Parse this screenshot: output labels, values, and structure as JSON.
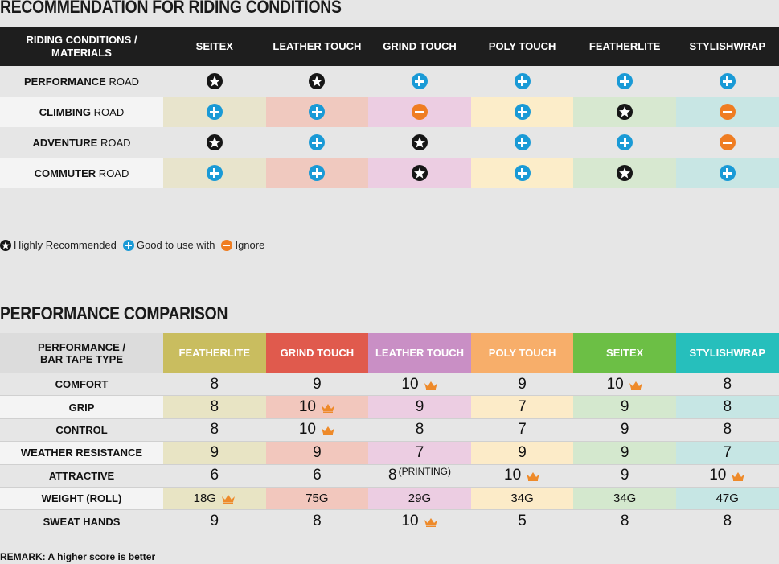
{
  "section1": {
    "title": "RECOMMENDATION FOR RIDING CONDITIONS",
    "header_label": [
      "RIDING CONDITIONS /",
      "MATERIALS"
    ],
    "columns": [
      "SEITEX",
      "LEATHER TOUCH",
      "GRIND TOUCH",
      "POLY TOUCH",
      "FEATHERLITE",
      "STYLISHWRAP"
    ],
    "column_tints": [
      "#e8e4cc",
      "#f0c9bf",
      "#eccde2",
      "#fcedc9",
      "#d7e8d0",
      "#c8e6e4"
    ],
    "rows": [
      {
        "bold": "PERFORMANCE",
        "rest": " ROAD",
        "marks": [
          "star",
          "star",
          "plus",
          "plus",
          "plus",
          "plus"
        ],
        "shaded": false
      },
      {
        "bold": "CLIMBING",
        "rest": " ROAD",
        "marks": [
          "plus",
          "plus",
          "minus",
          "plus",
          "star",
          "minus"
        ],
        "shaded": true
      },
      {
        "bold": "ADVENTURE",
        "rest": " ROAD",
        "marks": [
          "star",
          "plus",
          "star",
          "plus",
          "plus",
          "minus"
        ],
        "shaded": false
      },
      {
        "bold": "COMMUTER",
        "rest": " ROAD",
        "marks": [
          "plus",
          "plus",
          "star",
          "plus",
          "star",
          "plus"
        ],
        "shaded": true
      }
    ]
  },
  "legend": {
    "highly": "Highly Recommended",
    "good": "Good to use with",
    "ignore": "Ignore"
  },
  "section2": {
    "title": "PERFORMANCE COMPARISON",
    "header_label": [
      "PERFORMANCE /",
      "BAR TAPE TYPE"
    ],
    "columns": [
      {
        "name": "FEATHERLITE",
        "color": "#c9bd5f",
        "tint": "#e8e4c4"
      },
      {
        "name": "GRIND TOUCH",
        "color": "#e05a4d",
        "tint": "#f2c7bd"
      },
      {
        "name": "LEATHER TOUCH",
        "color": "#c98fc5",
        "tint": "#eccde2"
      },
      {
        "name": "POLY TOUCH",
        "color": "#f7ae6a",
        "tint": "#fcebc8"
      },
      {
        "name": "SEITEX",
        "color": "#6cbf45",
        "tint": "#d4e8ce"
      },
      {
        "name": "STYLISHWRAP",
        "color": "#26bfbc",
        "tint": "#c6e6e4"
      }
    ],
    "rows": [
      {
        "label": "COMFORT",
        "shaded": false,
        "cells": [
          {
            "v": "8"
          },
          {
            "v": "9"
          },
          {
            "v": "10",
            "crown": true
          },
          {
            "v": "9"
          },
          {
            "v": "10",
            "crown": true
          },
          {
            "v": "8"
          }
        ]
      },
      {
        "label": "GRIP",
        "shaded": true,
        "cells": [
          {
            "v": "8"
          },
          {
            "v": "10",
            "crown": true
          },
          {
            "v": "9"
          },
          {
            "v": "7"
          },
          {
            "v": "9"
          },
          {
            "v": "8"
          }
        ]
      },
      {
        "label": "CONTROL",
        "shaded": false,
        "cells": [
          {
            "v": "8"
          },
          {
            "v": "10",
            "crown": true
          },
          {
            "v": "8"
          },
          {
            "v": "7"
          },
          {
            "v": "9"
          },
          {
            "v": "8"
          }
        ]
      },
      {
        "label": "WEATHER RESISTANCE",
        "shaded": true,
        "cells": [
          {
            "v": "9"
          },
          {
            "v": "9"
          },
          {
            "v": "7"
          },
          {
            "v": "9"
          },
          {
            "v": "9"
          },
          {
            "v": "7"
          }
        ]
      },
      {
        "label": "ATTRACTIVE",
        "shaded": false,
        "cells": [
          {
            "v": "6"
          },
          {
            "v": "6"
          },
          {
            "v": "8",
            "sup": "(PRINTING)"
          },
          {
            "v": "10",
            "crown": true
          },
          {
            "v": "9"
          },
          {
            "v": "10",
            "crown": true
          }
        ]
      },
      {
        "label": "WEIGHT (ROLL)",
        "shaded": true,
        "small": true,
        "cells": [
          {
            "v": "18G",
            "crown": true
          },
          {
            "v": "75G"
          },
          {
            "v": "29G"
          },
          {
            "v": "34G"
          },
          {
            "v": "34G"
          },
          {
            "v": "47G"
          }
        ]
      },
      {
        "label": "SWEAT HANDS",
        "shaded": false,
        "cells": [
          {
            "v": "9"
          },
          {
            "v": "8"
          },
          {
            "v": "10",
            "crown": true
          },
          {
            "v": "5"
          },
          {
            "v": "8"
          },
          {
            "v": "8"
          }
        ]
      }
    ],
    "remark": "REMARK: A higher score is better"
  }
}
